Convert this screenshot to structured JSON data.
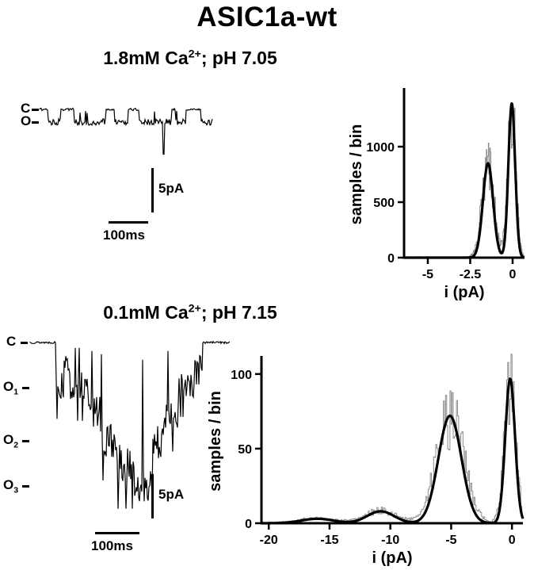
{
  "title": "ASIC1a-wt",
  "panel_a": {
    "subtitle": {
      "prefix": "1.8mM Ca",
      "sup": "2+",
      "suffix": "; pH 7.05"
    },
    "trace": {
      "level_labels": [
        {
          "base": "C",
          "sub": ""
        },
        {
          "base": "O",
          "sub": ""
        }
      ],
      "open_amplitude_pA": 1.4,
      "spike_amplitude_pA": 5,
      "scale_bar_vertical": "5pA",
      "scale_bar_horizontal": "100ms"
    }
  },
  "panel_b": {
    "subtitle": {
      "prefix": "0.1mM Ca",
      "sup": "2+",
      "suffix": "; pH 7.15"
    },
    "trace": {
      "level_labels": [
        {
          "base": "C",
          "sub": ""
        },
        {
          "base": "O",
          "sub": "1"
        },
        {
          "base": "O",
          "sub": "2"
        },
        {
          "base": "O",
          "sub": "3"
        }
      ],
      "level_amplitudes_pA": [
        0,
        -5,
        -11,
        -16
      ],
      "scale_bar_vertical": "5pA",
      "scale_bar_horizontal": "100ms"
    }
  },
  "chart_data": [
    {
      "id": "amplitude-histogram-high-calcium",
      "type": "line",
      "title": "1.8mM Ca2+; pH 7.05 amplitude histogram with gaussian fit",
      "xlabel": "i (pA)",
      "ylabel": "samples / bin",
      "xlim": [
        -6.4,
        0.7
      ],
      "ylim": [
        0,
        1500
      ],
      "xticks": [
        -5,
        -2.5,
        0
      ],
      "yticks": [
        0,
        500,
        1000
      ],
      "grid": false,
      "legend": false,
      "gaussian_peaks": [
        {
          "center": -1.45,
          "sigma": 0.3,
          "amplitude": 850
        },
        {
          "center": -0.05,
          "sigma": 0.2,
          "amplitude": 1390
        }
      ]
    },
    {
      "id": "amplitude-histogram-low-calcium",
      "type": "line",
      "title": "0.1mM Ca2+; pH 7.15 amplitude histogram with gaussian fit",
      "xlabel": "i (pA)",
      "ylabel": "samples / bin",
      "xlim": [
        -20.6,
        0.9
      ],
      "ylim": [
        0,
        110
      ],
      "xticks": [
        -20,
        -15,
        -10,
        -5,
        0
      ],
      "yticks": [
        0,
        50,
        100
      ],
      "grid": false,
      "legend": false,
      "gaussian_peaks": [
        {
          "center": -16,
          "sigma": 1.3,
          "amplitude": 3
        },
        {
          "center": -10.8,
          "sigma": 1.1,
          "amplitude": 8
        },
        {
          "center": -5.1,
          "sigma": 0.95,
          "amplitude": 72
        },
        {
          "center": -0.15,
          "sigma": 0.4,
          "amplitude": 97
        }
      ]
    }
  ]
}
